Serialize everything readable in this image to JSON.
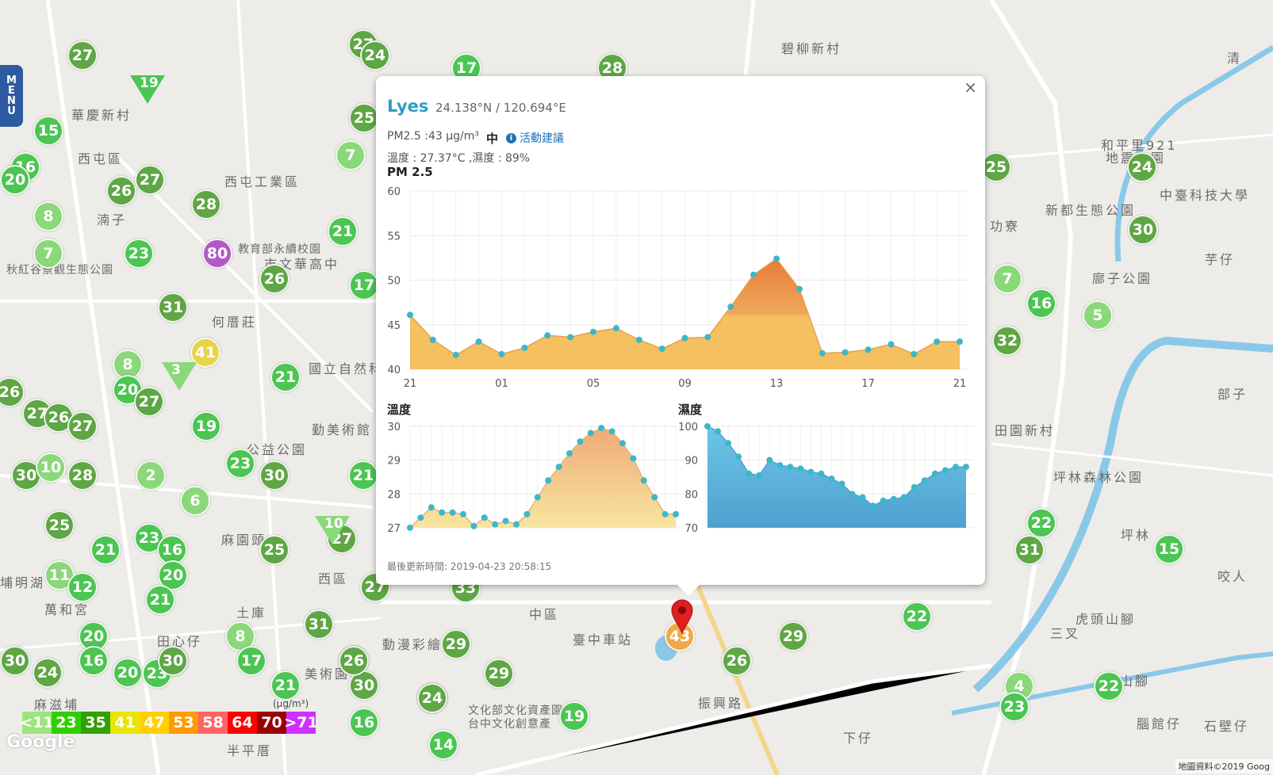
{
  "menu_label": "MENU",
  "map_labels": [
    {
      "text": "碧柳新村"
    },
    {
      "text": "華慶新村"
    },
    {
      "text": "西屯區"
    },
    {
      "text": "西屯工業區"
    },
    {
      "text": "湳子"
    },
    {
      "text": "何厝莊"
    },
    {
      "text": "國立自然科"
    },
    {
      "text": "勤美術館"
    },
    {
      "text": "公益公園"
    },
    {
      "text": "麻園頭"
    },
    {
      "text": "西區"
    },
    {
      "text": "土庫"
    },
    {
      "text": "田心仔"
    },
    {
      "text": "麻滋埔"
    },
    {
      "text": "中區"
    },
    {
      "text": "臺中車站"
    },
    {
      "text": "振興路"
    },
    {
      "text": "動漫彩繪巷"
    },
    {
      "text": "美術園"
    },
    {
      "text": "文化部文化資產園"
    },
    {
      "text": "台中文化創意產"
    },
    {
      "text": "下仔"
    },
    {
      "text": "三叉"
    },
    {
      "text": "虎頭山腳"
    },
    {
      "text": "坪林"
    },
    {
      "text": "田園新村"
    },
    {
      "text": "坪林森林公園"
    },
    {
      "text": "新都生態公園"
    },
    {
      "text": "和平里921"
    },
    {
      "text": "地震公園"
    },
    {
      "text": "中臺科技大學"
    },
    {
      "text": "廍子公園"
    },
    {
      "text": "芋仔"
    },
    {
      "text": "部子"
    },
    {
      "text": "腦館仔"
    },
    {
      "text": "石壁仔"
    },
    {
      "text": "山腳"
    },
    {
      "text": "功寮"
    },
    {
      "text": "秋紅谷景觀生態公園"
    },
    {
      "text": "教育部永續校園"
    },
    {
      "text": "市文華高中"
    },
    {
      "text": "萬和宮"
    },
    {
      "text": "半平厝"
    },
    {
      "text": "清"
    },
    {
      "text": "咬人"
    },
    {
      "text": "埔明湖"
    }
  ],
  "markers": [
    {
      "v": "27",
      "c": "#5fa645"
    },
    {
      "v": "27",
      "c": "#5fa645"
    },
    {
      "v": "24",
      "c": "#5fa645"
    },
    {
      "v": "17",
      "c": "#4cc552"
    },
    {
      "v": "28",
      "c": "#5fa645"
    },
    {
      "v": "15",
      "c": "#4cc552"
    },
    {
      "v": "25",
      "c": "#5fa645"
    },
    {
      "v": "7",
      "c": "#8bd87a"
    },
    {
      "v": "16",
      "c": "#4cc552"
    },
    {
      "v": "20",
      "c": "#4cc552"
    },
    {
      "v": "26",
      "c": "#5fa645"
    },
    {
      "v": "27",
      "c": "#5fa645"
    },
    {
      "v": "28",
      "c": "#5fa645"
    },
    {
      "v": "8",
      "c": "#8bd87a"
    },
    {
      "v": "7",
      "c": "#8bd87a"
    },
    {
      "v": "23",
      "c": "#4cc552"
    },
    {
      "v": "80",
      "c": "#b259c4"
    },
    {
      "v": "21",
      "c": "#4cc552"
    },
    {
      "v": "26",
      "c": "#5fa645"
    },
    {
      "v": "17",
      "c": "#4cc552"
    },
    {
      "v": "31",
      "c": "#5fa645"
    },
    {
      "v": "41",
      "c": "#e8d44a"
    },
    {
      "v": "8",
      "c": "#8bd87a"
    },
    {
      "v": "20",
      "c": "#4cc552"
    },
    {
      "v": "27",
      "c": "#5fa645"
    },
    {
      "v": "27",
      "c": "#5fa645"
    },
    {
      "v": "26",
      "c": "#5fa645"
    },
    {
      "v": "27",
      "c": "#5fa645"
    },
    {
      "v": "19",
      "c": "#4cc552"
    },
    {
      "v": "23",
      "c": "#4cc552"
    },
    {
      "v": "30",
      "c": "#5fa645"
    },
    {
      "v": "21",
      "c": "#4cc552"
    },
    {
      "v": "30",
      "c": "#5fa645"
    },
    {
      "v": "10",
      "c": "#8bd87a"
    },
    {
      "v": "28",
      "c": "#5fa645"
    },
    {
      "v": "2",
      "c": "#8bd87a"
    },
    {
      "v": "6",
      "c": "#8bd87a"
    },
    {
      "v": "25",
      "c": "#5fa645"
    },
    {
      "v": "23",
      "c": "#4cc552"
    },
    {
      "v": "16",
      "c": "#4cc552"
    },
    {
      "v": "21",
      "c": "#4cc552"
    },
    {
      "v": "25",
      "c": "#5fa645"
    },
    {
      "v": "20",
      "c": "#4cc552"
    },
    {
      "v": "11",
      "c": "#8bd87a"
    },
    {
      "v": "12",
      "c": "#4cc552"
    },
    {
      "v": "21",
      "c": "#4cc552"
    },
    {
      "v": "27",
      "c": "#5fa645"
    },
    {
      "v": "31",
      "c": "#5fa645"
    },
    {
      "v": "20",
      "c": "#4cc552"
    },
    {
      "v": "16",
      "c": "#4cc552"
    },
    {
      "v": "8",
      "c": "#8bd87a"
    },
    {
      "v": "17",
      "c": "#4cc552"
    },
    {
      "v": "30",
      "c": "#5fa645"
    },
    {
      "v": "24",
      "c": "#5fa645"
    },
    {
      "v": "20",
      "c": "#4cc552"
    },
    {
      "v": "23",
      "c": "#4cc552"
    },
    {
      "v": "30",
      "c": "#5fa645"
    },
    {
      "v": "21",
      "c": "#4cc552"
    },
    {
      "v": "26",
      "c": "#5fa645"
    },
    {
      "v": "30",
      "c": "#5fa645"
    },
    {
      "v": "29",
      "c": "#5fa645"
    },
    {
      "v": "29",
      "c": "#5fa645"
    },
    {
      "v": "24",
      "c": "#5fa645"
    },
    {
      "v": "19",
      "c": "#4cc552"
    },
    {
      "v": "16",
      "c": "#4cc552"
    },
    {
      "v": "14",
      "c": "#4cc552"
    },
    {
      "v": "26",
      "c": "#5fa645"
    },
    {
      "v": "29",
      "c": "#5fa645"
    },
    {
      "v": "22",
      "c": "#4cc552"
    },
    {
      "v": "25",
      "c": "#5fa645"
    },
    {
      "v": "24",
      "c": "#5fa645"
    },
    {
      "v": "30",
      "c": "#5fa645"
    },
    {
      "v": "7",
      "c": "#8bd87a"
    },
    {
      "v": "16",
      "c": "#4cc552"
    },
    {
      "v": "5",
      "c": "#8bd87a"
    },
    {
      "v": "32",
      "c": "#5fa645"
    },
    {
      "v": "22",
      "c": "#4cc552"
    },
    {
      "v": "31",
      "c": "#5fa645"
    },
    {
      "v": "15",
      "c": "#4cc552"
    },
    {
      "v": "22",
      "c": "#4cc552"
    },
    {
      "v": "4",
      "c": "#8bd87a"
    },
    {
      "v": "23",
      "c": "#4cc552"
    },
    {
      "v": "43",
      "c": "#f0a848"
    },
    {
      "v": "21",
      "c": "#4cc552"
    },
    {
      "v": "26",
      "c": "#5fa645"
    },
    {
      "v": "27",
      "c": "#5fa645"
    },
    {
      "v": "30",
      "c": "#5fa645"
    },
    {
      "v": "26",
      "c": "#5fa645"
    },
    {
      "v": "24",
      "c": "#5fa645"
    },
    {
      "v": "33",
      "c": "#5fa645"
    }
  ],
  "triangle_markers": [
    {
      "v": "19",
      "c": "#4cc552"
    },
    {
      "v": "3",
      "c": "#8bd87a"
    },
    {
      "v": "10",
      "c": "#8bd87a"
    }
  ],
  "legend": [
    {
      "label": "<11",
      "color": "#9ce47e"
    },
    {
      "label": "23",
      "color": "#31cf00"
    },
    {
      "label": "35",
      "color": "#31a000"
    },
    {
      "label": "41",
      "color": "#e6e600"
    },
    {
      "label": "47",
      "color": "#ffcf00"
    },
    {
      "label": "53",
      "color": "#ff9a00"
    },
    {
      "label": "58",
      "color": "#ff6464"
    },
    {
      "label": "64",
      "color": "#ff0000"
    },
    {
      "label": "70",
      "color": "#990000"
    },
    {
      "label": ">71",
      "color": "#ce30ff"
    }
  ],
  "legend_unit": "(μg/m³)",
  "google_label": "Google",
  "copyright": "地圖資料©2019 Goog",
  "popup": {
    "close": "×",
    "name": "Lyes",
    "coords": "24.138°N / 120.694°E",
    "pm": "PM2.5 :43 μg/m³",
    "level": "中",
    "info_icon": "i",
    "advice": "活動建議",
    "weather": "溫度 : 27.37°C ,濕度 : 89%",
    "pm_title": "PM 2.5",
    "temp_title": "溫度",
    "hum_title": "濕度",
    "updated": "最後更新時間: 2019-04-23 20:58:15"
  },
  "chart_data": [
    {
      "type": "area",
      "title": "PM 2.5",
      "x_ticks": [
        "21",
        "01",
        "05",
        "09",
        "13",
        "17",
        "21"
      ],
      "ylim": [
        40,
        60
      ],
      "y_ticks": [
        40,
        45,
        50,
        55,
        60
      ],
      "values": [
        46.1,
        43.3,
        41.6,
        43.1,
        41.7,
        42.4,
        43.8,
        43.6,
        44.2,
        44.6,
        43.3,
        42.3,
        43.5,
        43.6,
        47.0,
        50.6,
        52.4,
        49.0,
        41.8,
        41.9,
        42.2,
        42.8,
        41.7,
        43.1,
        43.1
      ]
    },
    {
      "type": "area",
      "title": "溫度",
      "ylim": [
        27,
        30
      ],
      "y_ticks": [
        27,
        28,
        29,
        30
      ],
      "values": [
        27.0,
        27.3,
        27.6,
        27.45,
        27.45,
        27.4,
        27.05,
        27.3,
        27.1,
        27.2,
        27.1,
        27.4,
        27.9,
        28.4,
        28.8,
        29.2,
        29.55,
        29.8,
        29.95,
        29.85,
        29.5,
        29.05,
        28.4,
        27.9,
        27.4,
        27.4
      ]
    },
    {
      "type": "area",
      "title": "濕度",
      "ylim": [
        70,
        100
      ],
      "y_ticks": [
        70,
        80,
        90,
        100
      ],
      "values": [
        100,
        98.5,
        95,
        91,
        86,
        85.5,
        90,
        88.5,
        88,
        87.5,
        86.5,
        86,
        84.5,
        83,
        80,
        79,
        76.5,
        78,
        78.5,
        79,
        82,
        84,
        86,
        87,
        88,
        88
      ]
    }
  ]
}
